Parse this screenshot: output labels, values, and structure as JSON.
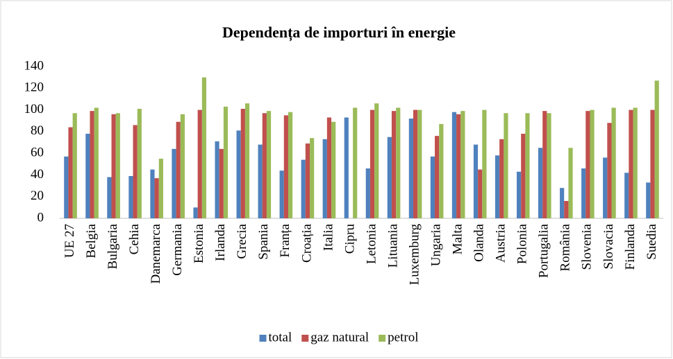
{
  "chart_data": {
    "type": "bar",
    "title": "Dependența de importuri în energie",
    "categories": [
      "UE 27",
      "Belgia",
      "Bulgaria",
      "Cehia",
      "Danemarca",
      "Germania",
      "Estonia",
      "Irlanda",
      "Grecia",
      "Spania",
      "Franța",
      "Croația",
      "Italia",
      "Cipru",
      "Letonia",
      "Lituania",
      "Luxemburg",
      "Ungaria",
      "Malta",
      "Olanda",
      "Austria",
      "Polonia",
      "Portugalia",
      "România",
      "Slovenia",
      "Slovacia",
      "Finlanda",
      "Suedia"
    ],
    "series": [
      {
        "name": "total",
        "color": "#4f81bd",
        "values": [
          57,
          78,
          38,
          39,
          45,
          64,
          10,
          71,
          81,
          68,
          44,
          54,
          73,
          93,
          46,
          75,
          92,
          57,
          98,
          68,
          58,
          43,
          65,
          28,
          46,
          56,
          42,
          33
        ]
      },
      {
        "name": "gaz natural",
        "color": "#c0504d",
        "values": [
          84,
          99,
          96,
          86,
          37,
          89,
          100,
          64,
          101,
          97,
          95,
          69,
          93,
          null,
          100,
          99,
          100,
          76,
          96,
          45,
          73,
          78,
          99,
          16,
          99,
          88,
          100,
          100
        ]
      },
      {
        "name": "petrol",
        "color": "#9bbb59",
        "values": [
          97,
          102,
          97,
          101,
          55,
          96,
          130,
          103,
          106,
          99,
          98,
          74,
          89,
          102,
          106,
          102,
          100,
          87,
          99,
          100,
          97,
          97,
          97,
          65,
          100,
          102,
          102,
          127
        ]
      }
    ],
    "ylim": [
      0,
      140
    ],
    "yticks": [
      0,
      20,
      40,
      60,
      80,
      100,
      120,
      140
    ],
    "grid": false,
    "legend": "bottom"
  }
}
